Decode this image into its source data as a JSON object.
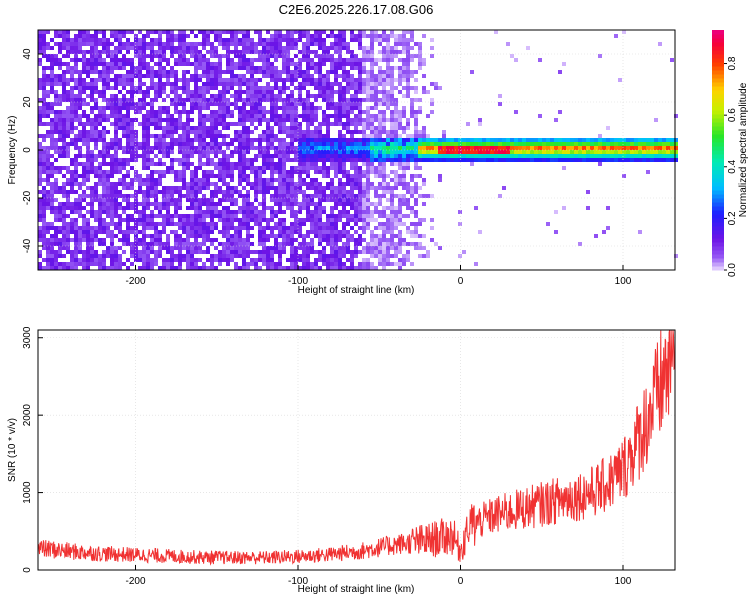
{
  "title": "C2E6.2025.226.17.08.G06",
  "colors": {
    "snr_line": "#f03232",
    "background_purple": "#7a3cf0",
    "frame": "#000000",
    "grid": "#d0d0d0"
  },
  "colorbar": {
    "label": "Normalized spectral amplitude",
    "ticks": [
      "0.0",
      "0.2",
      "0.4",
      "0.6",
      "0.8"
    ],
    "range": [
      0,
      0.93
    ]
  },
  "chart_data": [
    {
      "type": "heatmap",
      "title": "C2E6.2025.226.17.08.G06",
      "xlabel": "Height of straight line (km)",
      "ylabel": "Frequency (Hz)",
      "xlim": [
        -260,
        132
      ],
      "ylim": [
        -50,
        50
      ],
      "x_ticks": [
        -200,
        -100,
        0,
        100
      ],
      "y_ticks": [
        -40,
        -20,
        0,
        20,
        40
      ],
      "grid": true,
      "colormap": "rainbow (violet=0 to red/magenta=0.93)",
      "features": {
        "noise_region_x": [
          -260,
          -40
        ],
        "noise_fade_end_x": -15,
        "band_start_x": -100,
        "band_center_frequency": 0.5,
        "band_halfwidth_hz": 5
      }
    },
    {
      "type": "line",
      "xlabel": "Height of straight line (km)",
      "ylabel": "SNR (10 * v/v)",
      "xlim": [
        -260,
        132
      ],
      "ylim": [
        0,
        3100
      ],
      "x_ticks": [
        -200,
        -100,
        0,
        100
      ],
      "y_ticks": [
        0,
        1000,
        2000,
        3000
      ],
      "grid": true,
      "series": [
        {
          "color": "#f03232",
          "x": [
            -260,
            -240,
            -220,
            -200,
            -180,
            -160,
            -140,
            -120,
            -100,
            -80,
            -60,
            -40,
            -20,
            -5,
            0,
            5,
            20,
            40,
            60,
            80,
            90,
            100,
            110,
            120,
            132
          ],
          "y": [
            280,
            240,
            210,
            195,
            180,
            165,
            160,
            160,
            175,
            200,
            250,
            330,
            380,
            450,
            250,
            560,
            700,
            800,
            900,
            1000,
            1100,
            1300,
            1700,
            2200,
            2850
          ]
        }
      ]
    }
  ]
}
